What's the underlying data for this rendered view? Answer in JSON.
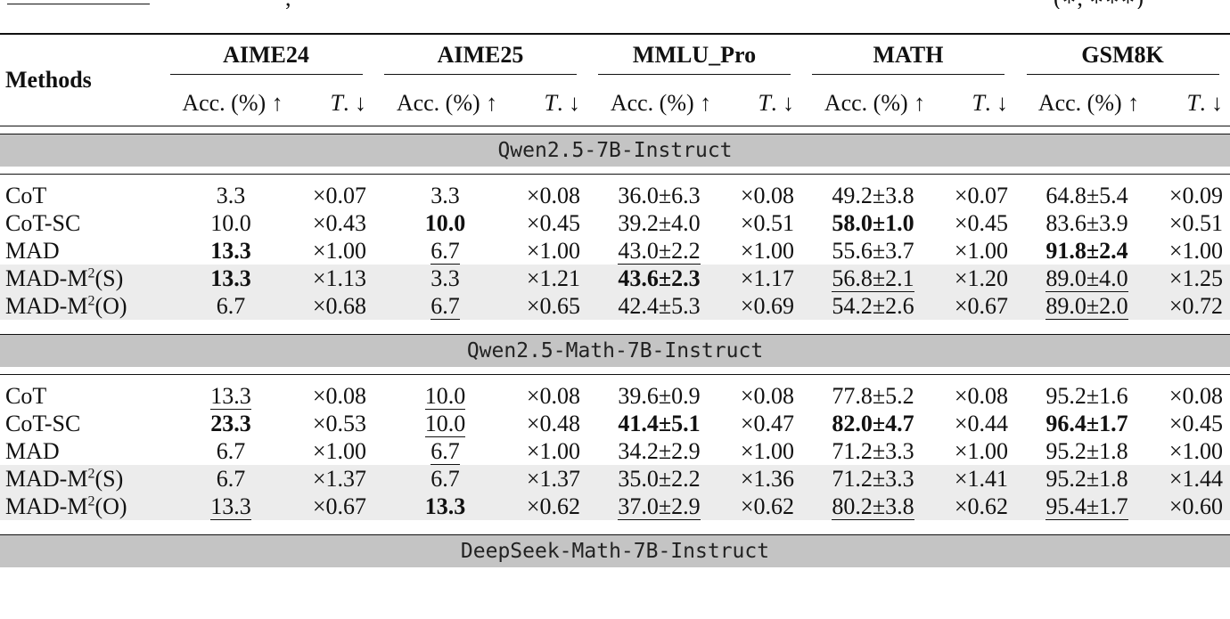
{
  "caption_fragment": {
    "left_text": ", ",
    "right_text": "(∗, ∗∗∗)"
  },
  "table": {
    "methods_header": "Methods",
    "datasets": [
      "AIME24",
      "AIME25",
      "MMLU_Pro",
      "MATH",
      "GSM8K"
    ],
    "acc_header": "Acc. (%) ↑",
    "t_header_main": "T",
    "t_header_suffix": ". ↓",
    "sections": [
      {
        "model": "Qwen2.5-7B-Instruct",
        "rows": [
          {
            "method_base": "CoT",
            "method_sup": "",
            "method_suffix": "",
            "shaded": false,
            "cells": [
              {
                "acc": "3.3",
                "bold": false,
                "ul": false,
                "t": "×0.07"
              },
              {
                "acc": "3.3",
                "bold": false,
                "ul": false,
                "t": "×0.08"
              },
              {
                "acc": "36.0±6.3",
                "bold": false,
                "ul": false,
                "t": "×0.08"
              },
              {
                "acc": "49.2±3.8",
                "bold": false,
                "ul": false,
                "t": "×0.07"
              },
              {
                "acc": "64.8±5.4",
                "bold": false,
                "ul": false,
                "t": "×0.09"
              }
            ]
          },
          {
            "method_base": "CoT-SC",
            "method_sup": "",
            "method_suffix": "",
            "shaded": false,
            "cells": [
              {
                "acc": "10.0",
                "bold": false,
                "ul": false,
                "t": "×0.43"
              },
              {
                "acc": "10.0",
                "bold": true,
                "ul": false,
                "t": "×0.45"
              },
              {
                "acc": "39.2±4.0",
                "bold": false,
                "ul": false,
                "t": "×0.51"
              },
              {
                "acc": "58.0±1.0",
                "bold": true,
                "ul": false,
                "t": "×0.45"
              },
              {
                "acc": "83.6±3.9",
                "bold": false,
                "ul": false,
                "t": "×0.51"
              }
            ]
          },
          {
            "method_base": "MAD",
            "method_sup": "",
            "method_suffix": "",
            "shaded": false,
            "cells": [
              {
                "acc": "13.3",
                "bold": true,
                "ul": false,
                "t": "×1.00"
              },
              {
                "acc": "6.7",
                "bold": false,
                "ul": true,
                "t": "×1.00"
              },
              {
                "acc": "43.0±2.2",
                "bold": false,
                "ul": true,
                "t": "×1.00"
              },
              {
                "acc": "55.6±3.7",
                "bold": false,
                "ul": false,
                "t": "×1.00"
              },
              {
                "acc": "91.8±2.4",
                "bold": true,
                "ul": false,
                "t": "×1.00"
              }
            ]
          },
          {
            "method_base": "MAD-M",
            "method_sup": "2",
            "method_suffix": "(S)",
            "shaded": true,
            "cells": [
              {
                "acc": "13.3",
                "bold": true,
                "ul": false,
                "t": "×1.13"
              },
              {
                "acc": "3.3",
                "bold": false,
                "ul": false,
                "t": "×1.21"
              },
              {
                "acc": "43.6±2.3",
                "bold": true,
                "ul": false,
                "t": "×1.17"
              },
              {
                "acc": "56.8±2.1",
                "bold": false,
                "ul": true,
                "t": "×1.20"
              },
              {
                "acc": "89.0±4.0",
                "bold": false,
                "ul": true,
                "t": "×1.25"
              }
            ]
          },
          {
            "method_base": "MAD-M",
            "method_sup": "2",
            "method_suffix": "(O)",
            "shaded": true,
            "cells": [
              {
                "acc": "6.7",
                "bold": false,
                "ul": false,
                "t": "×0.68"
              },
              {
                "acc": "6.7",
                "bold": false,
                "ul": true,
                "t": "×0.65"
              },
              {
                "acc": "42.4±5.3",
                "bold": false,
                "ul": false,
                "t": "×0.69"
              },
              {
                "acc": "54.2±2.6",
                "bold": false,
                "ul": false,
                "t": "×0.67"
              },
              {
                "acc": "89.0±2.0",
                "bold": false,
                "ul": true,
                "t": "×0.72"
              }
            ]
          }
        ]
      },
      {
        "model": "Qwen2.5-Math-7B-Instruct",
        "rows": [
          {
            "method_base": "CoT",
            "method_sup": "",
            "method_suffix": "",
            "shaded": false,
            "cells": [
              {
                "acc": "13.3",
                "bold": false,
                "ul": true,
                "t": "×0.08"
              },
              {
                "acc": "10.0",
                "bold": false,
                "ul": true,
                "t": "×0.08"
              },
              {
                "acc": "39.6±0.9",
                "bold": false,
                "ul": false,
                "t": "×0.08"
              },
              {
                "acc": "77.8±5.2",
                "bold": false,
                "ul": false,
                "t": "×0.08"
              },
              {
                "acc": "95.2±1.6",
                "bold": false,
                "ul": false,
                "t": "×0.08"
              }
            ]
          },
          {
            "method_base": "CoT-SC",
            "method_sup": "",
            "method_suffix": "",
            "shaded": false,
            "cells": [
              {
                "acc": "23.3",
                "bold": true,
                "ul": false,
                "t": "×0.53"
              },
              {
                "acc": "10.0",
                "bold": false,
                "ul": true,
                "t": "×0.48"
              },
              {
                "acc": "41.4±5.1",
                "bold": true,
                "ul": false,
                "t": "×0.47"
              },
              {
                "acc": "82.0±4.7",
                "bold": true,
                "ul": false,
                "t": "×0.44"
              },
              {
                "acc": "96.4±1.7",
                "bold": true,
                "ul": false,
                "t": "×0.45"
              }
            ]
          },
          {
            "method_base": "MAD",
            "method_sup": "",
            "method_suffix": "",
            "shaded": false,
            "cells": [
              {
                "acc": "6.7",
                "bold": false,
                "ul": false,
                "t": "×1.00"
              },
              {
                "acc": "6.7",
                "bold": false,
                "ul": true,
                "t": "×1.00"
              },
              {
                "acc": "34.2±2.9",
                "bold": false,
                "ul": false,
                "t": "×1.00"
              },
              {
                "acc": "71.2±3.3",
                "bold": false,
                "ul": false,
                "t": "×1.00"
              },
              {
                "acc": "95.2±1.8",
                "bold": false,
                "ul": false,
                "t": "×1.00"
              }
            ]
          },
          {
            "method_base": "MAD-M",
            "method_sup": "2",
            "method_suffix": "(S)",
            "shaded": true,
            "cells": [
              {
                "acc": "6.7",
                "bold": false,
                "ul": false,
                "t": "×1.37"
              },
              {
                "acc": "6.7",
                "bold": false,
                "ul": false,
                "t": "×1.37"
              },
              {
                "acc": "35.0±2.2",
                "bold": false,
                "ul": false,
                "t": "×1.36"
              },
              {
                "acc": "71.2±3.3",
                "bold": false,
                "ul": false,
                "t": "×1.41"
              },
              {
                "acc": "95.2±1.8",
                "bold": false,
                "ul": false,
                "t": "×1.44"
              }
            ]
          },
          {
            "method_base": "MAD-M",
            "method_sup": "2",
            "method_suffix": "(O)",
            "shaded": true,
            "cells": [
              {
                "acc": "13.3",
                "bold": false,
                "ul": true,
                "t": "×0.67"
              },
              {
                "acc": "13.3",
                "bold": true,
                "ul": false,
                "t": "×0.62"
              },
              {
                "acc": "37.0±2.9",
                "bold": false,
                "ul": true,
                "t": "×0.62"
              },
              {
                "acc": "80.2±3.8",
                "bold": false,
                "ul": true,
                "t": "×0.62"
              },
              {
                "acc": "95.4±1.7",
                "bold": false,
                "ul": true,
                "t": "×0.60"
              }
            ]
          }
        ]
      },
      {
        "model": "DeepSeek-Math-7B-Instruct",
        "rows": []
      }
    ]
  }
}
